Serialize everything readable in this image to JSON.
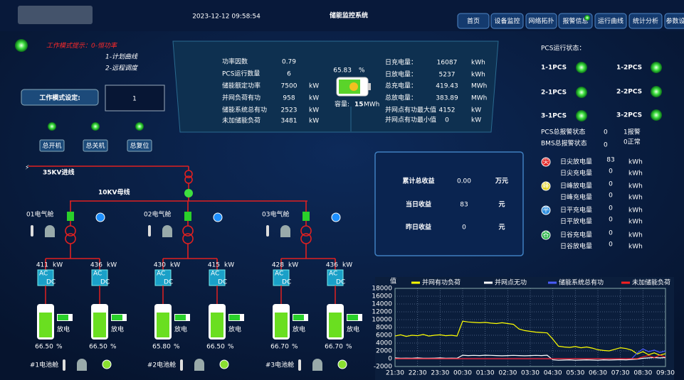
{
  "header": {
    "datetime": "2023-12-12 09:58:54",
    "title": "储能监控系统",
    "nav": [
      "首页",
      "设备监控",
      "网络拓扑",
      "报警信息",
      "运行曲线",
      "统计分析",
      "参数设"
    ]
  },
  "mode": {
    "hint_label": "工作模式提示：",
    "hints": [
      "0-恒功率",
      "1-计划曲线",
      "2-远程调度"
    ],
    "set_label": "工作模式设定:",
    "set_value": "1",
    "buttons": [
      "总开机",
      "总关机",
      "总复位"
    ]
  },
  "summary": {
    "left": [
      {
        "label": "功率因数",
        "value": 0.79
      },
      {
        "label": "PCS运行数量",
        "value": 6
      },
      {
        "label": "储能额定功率",
        "value": 7500,
        "unit": "kW"
      },
      {
        "label": "并网负荷有功",
        "value": 958,
        "unit": "kW"
      },
      {
        "label": "储能系统总有功",
        "value": 2523,
        "unit": "kW"
      },
      {
        "label": "未加储能负荷",
        "value": 3481,
        "unit": "kW"
      }
    ],
    "battery": {
      "percent": 65.83,
      "percent_unit": "%",
      "capacity_label": "容量:",
      "capacity": 15,
      "capacity_unit": "MWh"
    },
    "right": [
      {
        "label": "日充电量：",
        "value": 16087,
        "unit": "kWh"
      },
      {
        "label": "日放电量：",
        "value": 5237,
        "unit": "kWh"
      },
      {
        "label": "总充电量：",
        "value": 419.43,
        "unit": "MWh"
      },
      {
        "label": "总放电量：",
        "value": 383.89,
        "unit": "MWh"
      },
      {
        "label": "并网点有功最大值",
        "value": 4152,
        "unit": "kW"
      },
      {
        "label": "并网点有功最小值",
        "value": 0,
        "unit": "kW"
      }
    ]
  },
  "pcs_status": {
    "title": "PCS运行状态：",
    "units": [
      "1-1PCS",
      "1-2PCS",
      "2-1PCS",
      "2-2PCS",
      "3-1PCS",
      "3-2PCS"
    ],
    "pcs_alarm_label": "PCS总报警状态",
    "pcs_alarm": 0,
    "bms_alarm_label": "BMS总报警状态",
    "bms_alarm": 0,
    "legend": [
      "1报警",
      "0正常"
    ]
  },
  "revenue": {
    "rows": [
      {
        "label": "累计总收益",
        "value": "0.00",
        "unit": "万元"
      },
      {
        "label": "当日收益",
        "value": 83,
        "unit": "元"
      },
      {
        "label": "昨日收益",
        "value": 0,
        "unit": "元"
      }
    ]
  },
  "energy": {
    "groups": [
      {
        "icon": "尖",
        "rows": [
          {
            "label": "日尖放电量",
            "value": 83,
            "unit": "kWh"
          },
          {
            "label": "日尖充电量",
            "value": 0,
            "unit": "kWh"
          }
        ]
      },
      {
        "icon": "峰",
        "rows": [
          {
            "label": "日峰放电量",
            "value": 0,
            "unit": "kWh"
          },
          {
            "label": "日峰充电量",
            "value": 0,
            "unit": "kWh"
          }
        ]
      },
      {
        "icon": "平",
        "rows": [
          {
            "label": "日平充电量",
            "value": 0,
            "unit": "kWh"
          },
          {
            "label": "日平放电量",
            "value": 0,
            "unit": "kWh"
          }
        ]
      },
      {
        "icon": "谷",
        "rows": [
          {
            "label": "日谷充电量",
            "value": 0,
            "unit": "kWh"
          },
          {
            "label": "日谷放电量",
            "value": 0,
            "unit": "kWh"
          }
        ]
      }
    ]
  },
  "diagram": {
    "incoming": "35KV进线",
    "bus": "10KV母线",
    "power_unit": "kW",
    "soc_unit": "%",
    "ac": "AC",
    "dc": "DC",
    "cabins": [
      {
        "name": "01电气舱",
        "battery_cabin": "#1电池舱",
        "pcs": [
          {
            "power": 411,
            "state": "放电",
            "soc": "66.50"
          },
          {
            "power": 436,
            "state": "放电",
            "soc": "66.50"
          }
        ]
      },
      {
        "name": "02电气舱",
        "battery_cabin": "#2电池舱",
        "pcs": [
          {
            "power": 430,
            "state": "放电",
            "soc": "65.80"
          },
          {
            "power": 415,
            "state": "放电",
            "soc": "66.50"
          }
        ]
      },
      {
        "name": "03电气舱",
        "battery_cabin": "#3电池舱",
        "pcs": [
          {
            "power": 428,
            "state": "放电",
            "soc": "66.70"
          },
          {
            "power": 436,
            "state": "放电",
            "soc": "66.70"
          }
        ]
      }
    ]
  },
  "chart_data": {
    "type": "line",
    "y_label": "值",
    "grid": true,
    "ylim": [
      -2000,
      18000
    ],
    "yticks": [
      -2000,
      0,
      2000,
      4000,
      6000,
      8000,
      10000,
      12000,
      14000,
      16000,
      18000
    ],
    "categories": [
      "21:30",
      null,
      null,
      null,
      "22:30",
      null,
      null,
      null,
      "23:30",
      null,
      null,
      null,
      "00:30",
      null,
      null,
      null,
      "01:30",
      null,
      null,
      null,
      "02:30",
      null,
      null,
      null,
      "03:30",
      null,
      null,
      null,
      "04:30",
      null,
      null,
      null,
      "05:30",
      null,
      null,
      null,
      "06:30",
      null,
      null,
      null,
      "07:30",
      null,
      null,
      null,
      "08:30",
      null,
      null,
      null,
      "09:30"
    ],
    "series": [
      {
        "name": "并网有功负荷",
        "color": "#ffff00",
        "values": [
          5800,
          6100,
          5700,
          6000,
          5900,
          6200,
          5800,
          6000,
          6100,
          5900,
          6000,
          5800,
          9600,
          9400,
          9300,
          9200,
          9300,
          9100,
          9000,
          9200,
          9000,
          8800,
          7600,
          7200,
          7000,
          6800,
          6700,
          6600,
          5000,
          3200,
          3000,
          2900,
          3100,
          2800,
          3000,
          2700,
          2300,
          2100,
          2000,
          2400,
          2800,
          2600,
          2200,
          1200,
          1800,
          1000,
          1500,
          900,
          1300
        ]
      },
      {
        "name": "并网点无功",
        "color": "#ffffff",
        "values": [
          200,
          100,
          150,
          100,
          200,
          120,
          100,
          150,
          200,
          100,
          150,
          100,
          900,
          800,
          850,
          800,
          900,
          850,
          800,
          750,
          800,
          850,
          800,
          750,
          800,
          850,
          800,
          900,
          -300,
          -400,
          -350,
          -300,
          -400,
          -350,
          -300,
          -350,
          -400,
          -300,
          -350,
          -300,
          -250,
          -300,
          -200,
          -100,
          100,
          200,
          300,
          200,
          300
        ]
      },
      {
        "name": "储能系统总有功",
        "color": "#4a5cff",
        "values": [
          0,
          0,
          0,
          0,
          0,
          0,
          0,
          0,
          0,
          0,
          0,
          0,
          0,
          0,
          0,
          0,
          0,
          0,
          0,
          0,
          0,
          0,
          0,
          0,
          0,
          0,
          0,
          0,
          0,
          0,
          0,
          0,
          0,
          0,
          0,
          0,
          0,
          0,
          0,
          0,
          0,
          0,
          0,
          1500,
          2500,
          1800,
          2200,
          1600,
          2000
        ]
      },
      {
        "name": "未加储能负荷",
        "color": "#ff2020",
        "values": [
          0,
          0,
          0,
          0,
          0,
          0,
          0,
          0,
          0,
          0,
          0,
          0,
          0,
          0,
          0,
          0,
          0,
          0,
          0,
          0,
          0,
          0,
          0,
          0,
          0,
          0,
          0,
          0,
          0,
          0,
          0,
          0,
          0,
          0,
          0,
          0,
          0,
          0,
          0,
          0,
          0,
          0,
          0,
          0,
          500,
          800,
          300,
          900,
          400
        ]
      }
    ]
  }
}
